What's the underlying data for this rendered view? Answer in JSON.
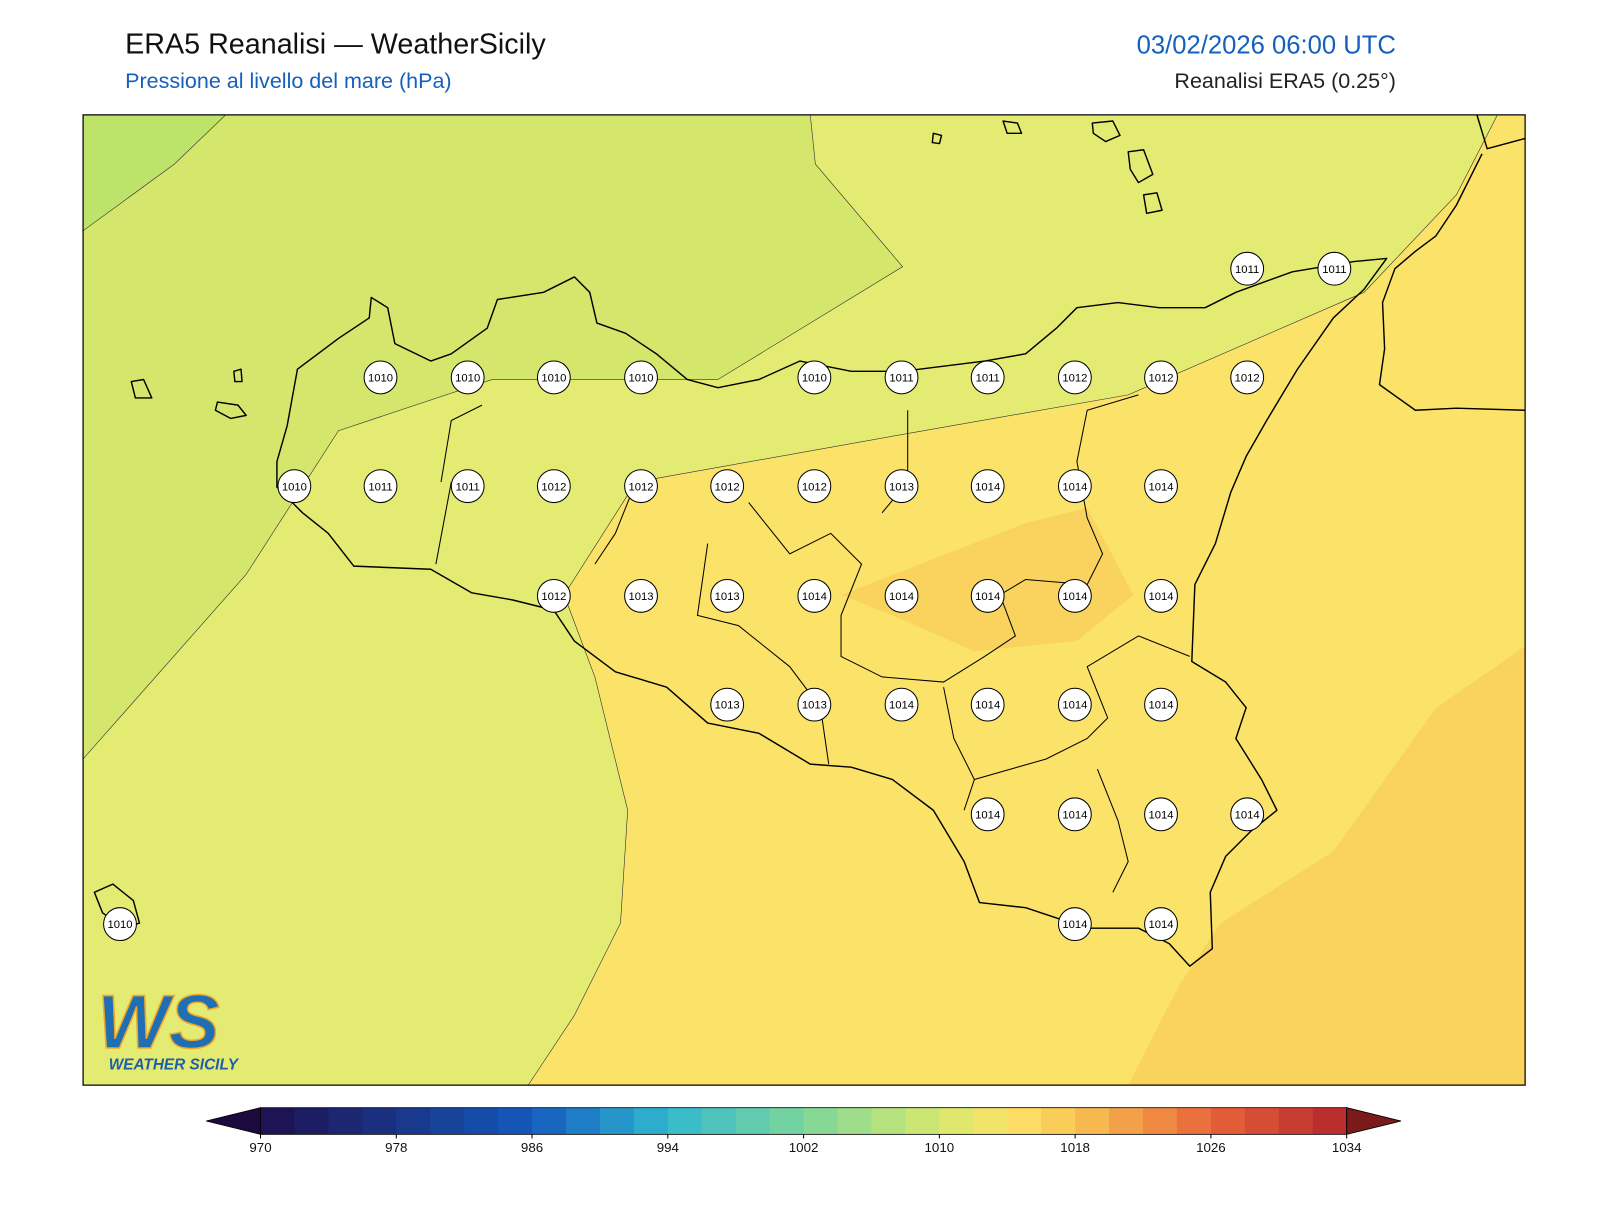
{
  "header": {
    "title": "ERA5 Reanalisi — WeatherSicily",
    "subtitle": "Pressione al livello del mare (hPa)",
    "datetime": "03/02/2026 06:00 UTC",
    "source": "Reanalisi ERA5 (0.25°)"
  },
  "pressure_labels": [
    1011,
    1011,
    1010,
    1010,
    1010,
    1010,
    1010,
    1011,
    1011,
    1012,
    1012,
    1012,
    1010,
    1011,
    1011,
    1012,
    1012,
    1012,
    1012,
    1013,
    1014,
    1014,
    1014,
    1012,
    1013,
    1013,
    1014,
    1014,
    1014,
    1014,
    1014,
    1013,
    1013,
    1014,
    1014,
    1014,
    1014,
    1014,
    1014,
    1014,
    1014,
    1010,
    1014,
    1014
  ],
  "colorbar": {
    "ticks": [
      970,
      978,
      986,
      994,
      1002,
      1010,
      1018,
      1026,
      1034
    ]
  },
  "logo": {
    "mark": "WS",
    "text": "WEATHER SICILY"
  }
}
